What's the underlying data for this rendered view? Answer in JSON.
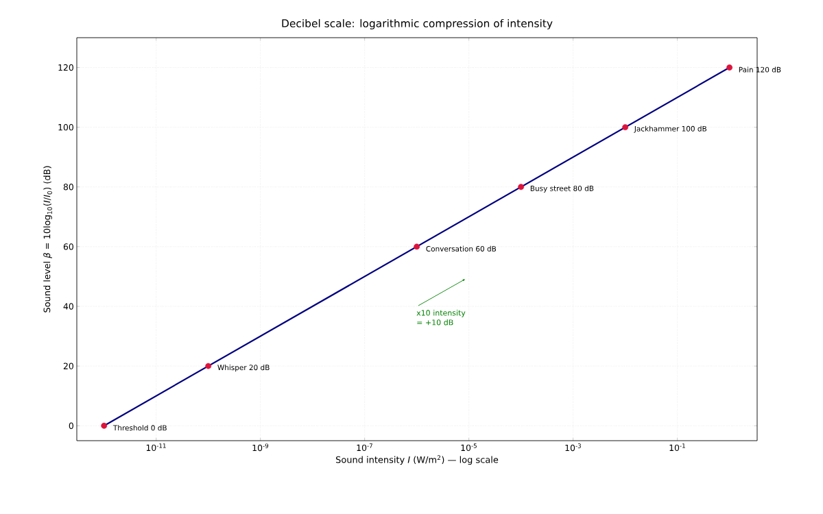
{
  "chart_data": {
    "type": "line",
    "title": "Decibel scale: logarithmic compression of intensity",
    "xlabel": "Sound intensity  *I*  (W/m$^{2}$)  — log scale",
    "ylabel": "Sound level  *β* = 10log$_{10}$(*I*/*I*$_{0}$)  (dB)",
    "log": "x",
    "grid": true,
    "xlim": [
      3e-13,
      3.4
    ],
    "ylim": [
      -5,
      130
    ],
    "xticks": [
      {
        "value": 1e-11,
        "label": "10$^{-11}$"
      },
      {
        "value": 1e-09,
        "label": "10$^{-9}$"
      },
      {
        "value": 1e-07,
        "label": "10$^{-7}$"
      },
      {
        "value": 1e-05,
        "label": "10$^{-5}$"
      },
      {
        "value": 0.001,
        "label": "10$^{-3}$"
      },
      {
        "value": 0.1,
        "label": "10$^{-1}$"
      }
    ],
    "yticks": [
      0,
      20,
      40,
      60,
      80,
      100,
      120
    ],
    "series": [
      {
        "color": "#000080",
        "x": [
          1e-12,
          1
        ],
        "values": [
          0,
          120
        ],
        "line_style": "solid",
        "marker": "none"
      },
      {
        "type": "scatter",
        "color": "#dc143c",
        "marker": "circle",
        "x": [
          1e-12,
          1e-10,
          1e-06,
          0.0001,
          0.01,
          1
        ],
        "values": [
          0,
          20,
          60,
          80,
          100,
          120
        ],
        "value_labels": [
          "Threshold 0 dB",
          "Whisper 20 dB",
          "Conversation 60 dB",
          "Busy street 80 dB",
          "Jackhammer 100 dB",
          "Pain 120 dB"
        ]
      }
    ],
    "annotations": [
      "x10 intensity = +10 dB"
    ]
  }
}
